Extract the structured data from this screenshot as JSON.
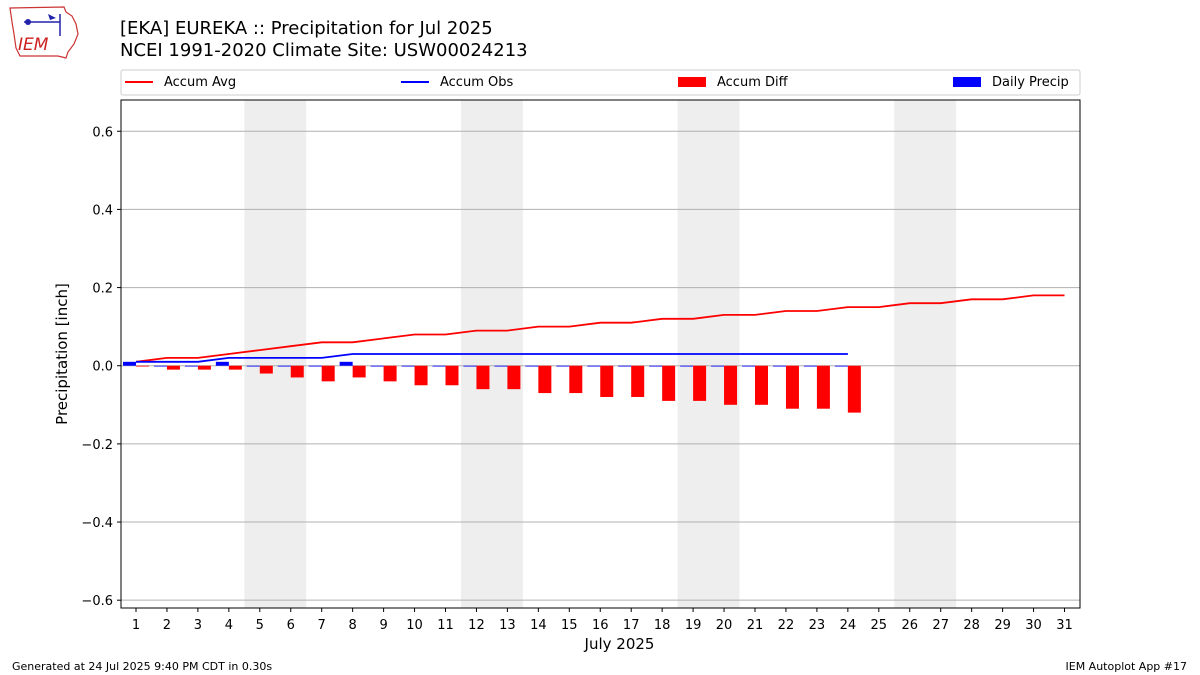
{
  "header": {
    "title": "[EKA] EUREKA :: Precipitation for Jul 2025",
    "subtitle": "NCEI 1991-2020 Climate Site: USW00024213",
    "logo_text": "IEM"
  },
  "footer": {
    "left": "Generated at 24 Jul 2025 9:40 PM CDT in 0.30s",
    "right": "IEM Autoplot App #17"
  },
  "colors": {
    "avg": "#ff0000",
    "obs": "#0000ff",
    "diff": "#ff0000",
    "daily": "#0000ff",
    "weekend_shade": "#eeeeee",
    "grid": "#b0b0b0"
  },
  "chart_data": {
    "type": "bar",
    "xlabel": "July 2025",
    "ylabel": "Precipitation [inch]",
    "ylim": [
      -0.62,
      0.68
    ],
    "yticks": [
      -0.6,
      -0.4,
      -0.2,
      0.0,
      0.2,
      0.4,
      0.6
    ],
    "ytick_labels": [
      "−0.6",
      "−0.4",
      "−0.2",
      "0.0",
      "0.2",
      "0.4",
      "0.6"
    ],
    "x": [
      1,
      2,
      3,
      4,
      5,
      6,
      7,
      8,
      9,
      10,
      11,
      12,
      13,
      14,
      15,
      16,
      17,
      18,
      19,
      20,
      21,
      22,
      23,
      24,
      25,
      26,
      27,
      28,
      29,
      30,
      31
    ],
    "grid": "horizontal",
    "legend_position": "top",
    "shaded_days": [
      [
        5,
        6
      ],
      [
        12,
        13
      ],
      [
        19,
        20
      ],
      [
        26,
        27
      ]
    ],
    "series": [
      {
        "name": "Accum Avg",
        "type": "line",
        "x": [
          1,
          2,
          3,
          4,
          5,
          6,
          7,
          8,
          9,
          10,
          11,
          12,
          13,
          14,
          15,
          16,
          17,
          18,
          19,
          20,
          21,
          22,
          23,
          24,
          25,
          26,
          27,
          28,
          29,
          30,
          31
        ],
        "values": [
          0.01,
          0.02,
          0.02,
          0.03,
          0.04,
          0.05,
          0.06,
          0.06,
          0.07,
          0.08,
          0.08,
          0.09,
          0.09,
          0.1,
          0.1,
          0.11,
          0.11,
          0.12,
          0.12,
          0.13,
          0.13,
          0.14,
          0.14,
          0.15,
          0.15,
          0.16,
          0.16,
          0.17,
          0.17,
          0.18,
          0.18
        ]
      },
      {
        "name": "Accum Obs",
        "type": "line",
        "x": [
          1,
          2,
          3,
          4,
          5,
          6,
          7,
          8,
          9,
          10,
          11,
          12,
          13,
          14,
          15,
          16,
          17,
          18,
          19,
          20,
          21,
          22,
          23,
          24
        ],
        "values": [
          0.01,
          0.01,
          0.01,
          0.02,
          0.02,
          0.02,
          0.02,
          0.03,
          0.03,
          0.03,
          0.03,
          0.03,
          0.03,
          0.03,
          0.03,
          0.03,
          0.03,
          0.03,
          0.03,
          0.03,
          0.03,
          0.03,
          0.03,
          0.03
        ]
      },
      {
        "name": "Accum Diff",
        "type": "bar",
        "x": [
          1,
          2,
          3,
          4,
          5,
          6,
          7,
          8,
          9,
          10,
          11,
          12,
          13,
          14,
          15,
          16,
          17,
          18,
          19,
          20,
          21,
          22,
          23,
          24
        ],
        "values": [
          0.0,
          -0.01,
          -0.01,
          -0.01,
          -0.02,
          -0.03,
          -0.04,
          -0.03,
          -0.04,
          -0.05,
          -0.05,
          -0.06,
          -0.06,
          -0.07,
          -0.07,
          -0.08,
          -0.08,
          -0.09,
          -0.09,
          -0.1,
          -0.1,
          -0.11,
          -0.11,
          -0.12
        ]
      },
      {
        "name": "Daily Precip",
        "type": "bar",
        "x": [
          1,
          2,
          3,
          4,
          5,
          6,
          7,
          8,
          9,
          10,
          11,
          12,
          13,
          14,
          15,
          16,
          17,
          18,
          19,
          20,
          21,
          22,
          23,
          24
        ],
        "values": [
          0.01,
          0.0,
          0.0,
          0.01,
          0.0,
          0.0,
          0.0,
          0.01,
          0.0,
          0.0,
          0.0,
          0.0,
          0.0,
          0.0,
          0.0,
          0.0,
          0.0,
          0.0,
          0.0,
          0.0,
          0.0,
          0.0,
          0.0,
          0.0
        ]
      }
    ]
  }
}
